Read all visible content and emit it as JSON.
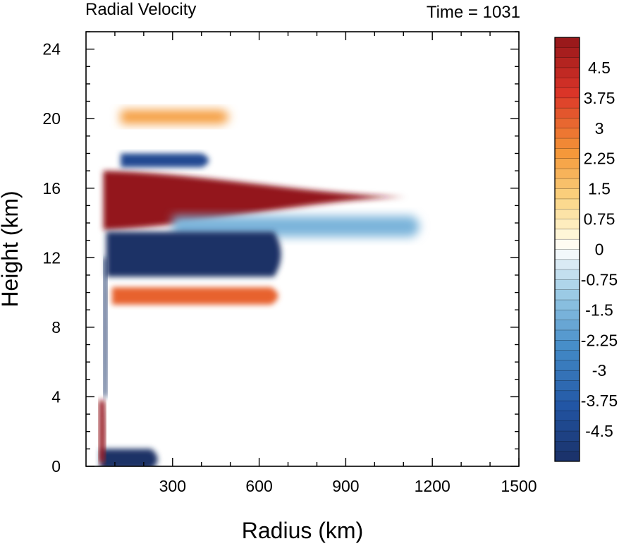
{
  "chart_data": {
    "type": "heatmap",
    "title_left": "Radial Velocity",
    "title_right": "Time = 1031",
    "xlabel": "Radius (km)",
    "ylabel": "Height (km)",
    "xlim": [
      0,
      1500
    ],
    "ylim": [
      0,
      25
    ],
    "x_ticks": [
      300,
      600,
      900,
      1200,
      1500
    ],
    "y_ticks": [
      0,
      4,
      8,
      12,
      16,
      20,
      24
    ],
    "colorbar": {
      "min": -5.25,
      "max": 5.25,
      "labels": [
        "4.5",
        "3.75",
        "3",
        "2.25",
        "1.5",
        "0.75",
        "0",
        "-0.75",
        "-1.5",
        "-2.25",
        "-3",
        "-3.75",
        "-4.5"
      ]
    },
    "features": [
      {
        "kind": "outflow",
        "value": 5.25,
        "r_start": 60,
        "r_end": 1110,
        "z_bottom_start": 13.6,
        "z_bottom_end": 15.4,
        "z_top_start": 17.0,
        "z_top_end": 15.6
      },
      {
        "kind": "outflow",
        "value": 2.3,
        "r_start": 120,
        "r_end": 520,
        "z_center": 20.1,
        "half_thickness": 0.4
      },
      {
        "kind": "inflow",
        "value": -4.3,
        "r_start": 120,
        "r_end": 450,
        "z_center": 17.6,
        "half_thickness": 0.4
      },
      {
        "kind": "inflow",
        "value": -1.6,
        "r_start": 300,
        "r_end": 1180,
        "z_center": 13.8,
        "half_thickness": 0.6
      },
      {
        "kind": "inflow",
        "value": -5.25,
        "r_start": 70,
        "r_end": 700,
        "z_center": 12.2,
        "half_thickness": 1.3
      },
      {
        "kind": "outflow",
        "value": 3.2,
        "r_start": 90,
        "r_end": 690,
        "z_center": 9.8,
        "half_thickness": 0.5
      },
      {
        "kind": "inflow",
        "value": -5.25,
        "r_start": 50,
        "r_end": 270,
        "z_center": 0.4,
        "half_thickness": 0.6
      },
      {
        "kind": "outflow",
        "value": 5.25,
        "r_start": 45,
        "r_end": 70,
        "z_center": 2.0,
        "half_thickness": 1.8
      },
      {
        "kind": "inflow",
        "value": -5.25,
        "r_start": 60,
        "r_end": 75,
        "z_center": 8.0,
        "half_thickness": 4.0
      }
    ]
  }
}
